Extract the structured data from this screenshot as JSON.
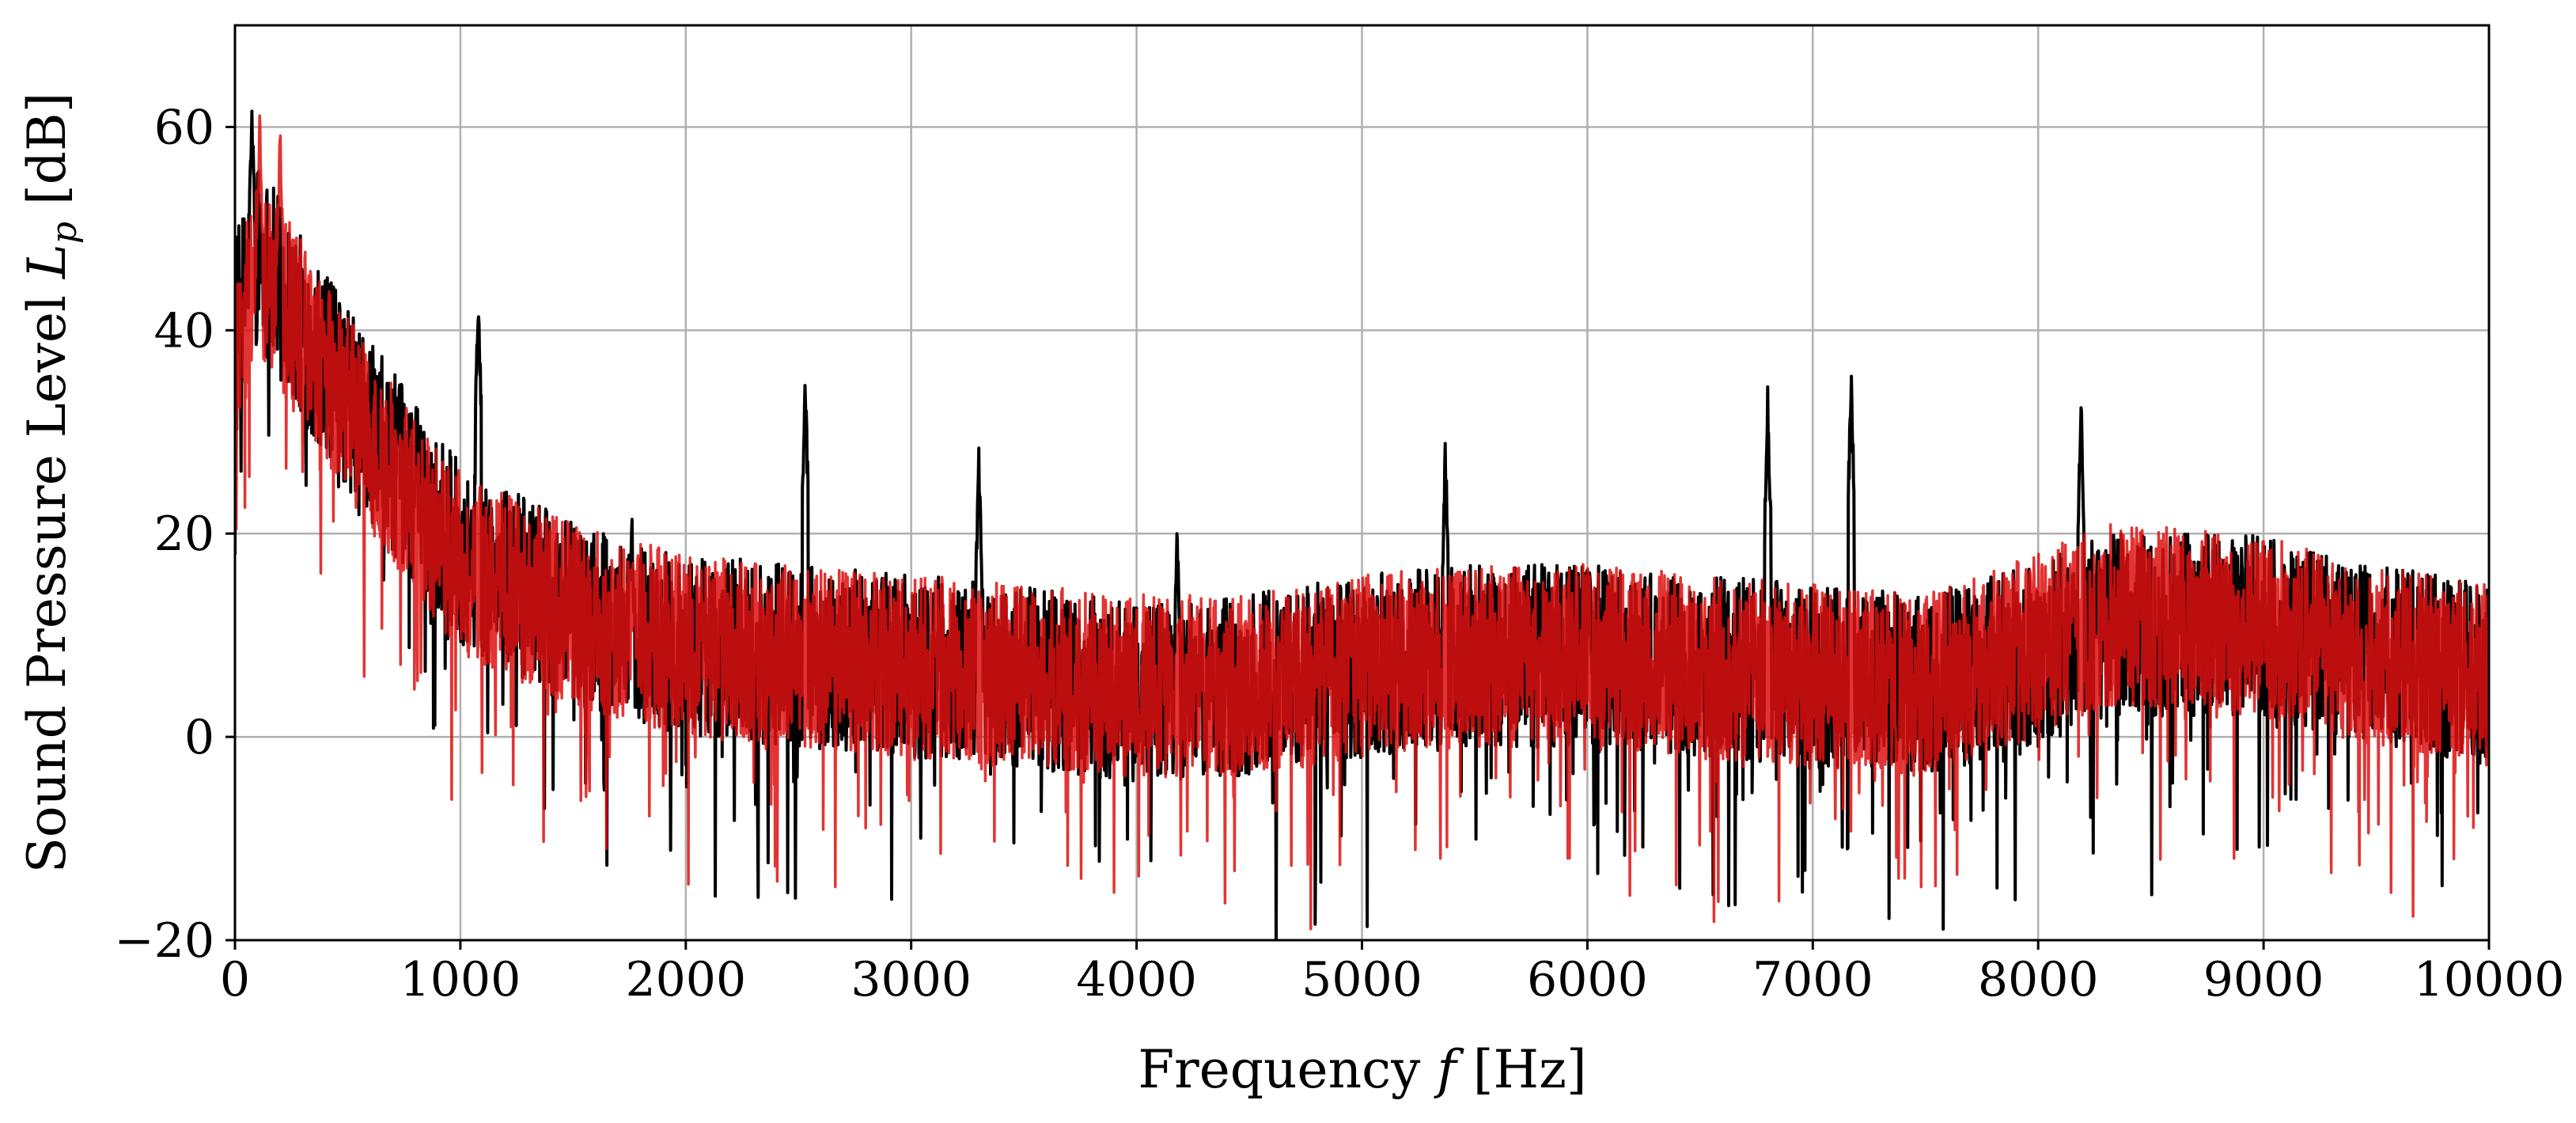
{
  "chart_data": {
    "type": "line",
    "title": "",
    "xlabel": "Frequency f [Hz]",
    "ylabel": "Sound Pressure Level L_p [dB]",
    "xlabel_parts": {
      "prefix": "Frequency ",
      "symbol": "f",
      "suffix": " [Hz]"
    },
    "ylabel_parts": {
      "prefix": "Sound Pressure Level ",
      "symbol": "L",
      "subscript": "p",
      "suffix": " [dB]"
    },
    "xlim": [
      0,
      10000
    ],
    "ylim": [
      -20,
      70
    ],
    "xticks": [
      0,
      1000,
      2000,
      3000,
      4000,
      5000,
      6000,
      7000,
      8000,
      9000,
      10000
    ],
    "xtick_labels": [
      "0",
      "1000",
      "2000",
      "3000",
      "4000",
      "5000",
      "6000",
      "7000",
      "8000",
      "9000",
      "10000"
    ],
    "yticks": [
      -20,
      0,
      20,
      40,
      60
    ],
    "ytick_labels": [
      "−20",
      "0",
      "20",
      "40",
      "60"
    ],
    "grid": true,
    "legend": "none",
    "series": [
      {
        "name": "black spectrum",
        "color": "#000000",
        "noise_amplitude_db": 9,
        "baseline": [
          [
            0,
            40
          ],
          [
            100,
            48
          ],
          [
            300,
            40
          ],
          [
            600,
            30
          ],
          [
            1000,
            18
          ],
          [
            1500,
            12
          ],
          [
            2000,
            9
          ],
          [
            2500,
            8
          ],
          [
            3000,
            7
          ],
          [
            3500,
            6
          ],
          [
            4000,
            4
          ],
          [
            4500,
            5
          ],
          [
            5000,
            7
          ],
          [
            5500,
            8
          ],
          [
            6000,
            8
          ],
          [
            6500,
            7
          ],
          [
            7000,
            6
          ],
          [
            7500,
            5
          ],
          [
            8000,
            8
          ],
          [
            8300,
            11
          ],
          [
            9000,
            11
          ],
          [
            9500,
            8
          ],
          [
            10000,
            6
          ]
        ],
        "peaks": [
          [
            75,
            64
          ],
          [
            1080,
            45
          ],
          [
            1760,
            24
          ],
          [
            2530,
            37
          ],
          [
            3300,
            29
          ],
          [
            4180,
            22
          ],
          [
            5370,
            30
          ],
          [
            6800,
            35
          ],
          [
            7170,
            37
          ],
          [
            8190,
            35
          ]
        ]
      },
      {
        "name": "red spectrum",
        "color": "#dd1111",
        "noise_amplitude_db": 9,
        "baseline": [
          [
            0,
            38
          ],
          [
            100,
            46
          ],
          [
            300,
            40
          ],
          [
            600,
            29
          ],
          [
            1000,
            17
          ],
          [
            1500,
            12
          ],
          [
            2000,
            9
          ],
          [
            2500,
            8
          ],
          [
            3000,
            7
          ],
          [
            3500,
            6
          ],
          [
            4000,
            5
          ],
          [
            4500,
            5
          ],
          [
            5000,
            7
          ],
          [
            5500,
            8
          ],
          [
            6000,
            8
          ],
          [
            6500,
            7
          ],
          [
            7000,
            6
          ],
          [
            7500,
            5
          ],
          [
            8000,
            9
          ],
          [
            8300,
            12
          ],
          [
            9000,
            11
          ],
          [
            9500,
            8
          ],
          [
            10000,
            6
          ]
        ],
        "peaks": [
          [
            110,
            62
          ],
          [
            200,
            61
          ]
        ]
      }
    ]
  }
}
